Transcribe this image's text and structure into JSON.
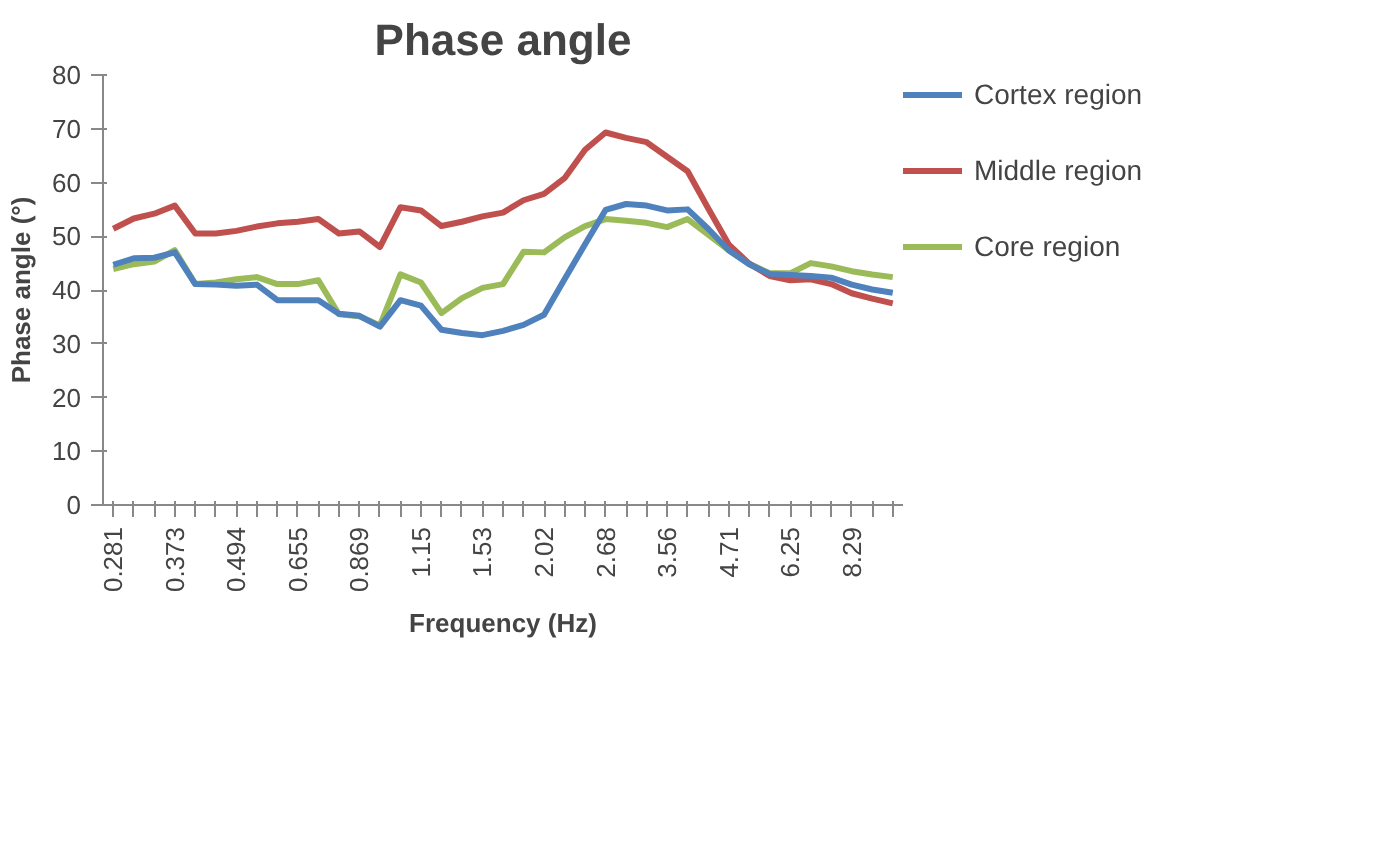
{
  "chart_data": {
    "type": "line",
    "title": "Phase angle",
    "xlabel": "Frequency (Hz)",
    "ylabel": "Phase angle (°)",
    "categories": [
      "0.281",
      null,
      null,
      "0.373",
      null,
      null,
      "0.494",
      null,
      null,
      "0.655",
      null,
      null,
      "0.869",
      null,
      null,
      "1.15",
      null,
      null,
      "1.53",
      null,
      null,
      "2.02",
      null,
      null,
      "2.68",
      null,
      null,
      "3.56",
      null,
      null,
      "4.71",
      null,
      null,
      "6.25",
      null,
      null,
      "8.29",
      null,
      null
    ],
    "series": [
      {
        "name": "Cortex region",
        "color": "#4f81bd",
        "values": [
          44.7,
          45.9,
          46,
          47,
          41.1,
          41,
          40.8,
          41,
          38.1,
          38.1,
          38.1,
          35.6,
          35.2,
          33.2,
          38.1,
          37.1,
          32.6,
          32,
          31.6,
          32.4,
          33.5,
          35.4,
          42,
          48.5,
          54.9,
          56,
          55.7,
          54.8,
          55,
          51.4,
          47.4,
          44.8,
          43,
          42.8,
          42.6,
          42.3,
          41,
          40.1,
          39.5
        ]
      },
      {
        "name": "Middle region",
        "color": "#c0504d",
        "values": [
          51.4,
          53.3,
          54.2,
          55.7,
          50.5,
          50.5,
          51,
          51.8,
          52.4,
          52.7,
          53.2,
          50.5,
          50.9,
          48,
          55.4,
          54.8,
          51.9,
          52.7,
          53.7,
          54.4,
          56.7,
          57.9,
          60.8,
          66.1,
          69.3,
          68.3,
          67.5,
          64.8,
          62.1,
          55.2,
          48.5,
          44.9,
          42.6,
          41.8,
          42,
          41.1,
          39.4,
          38.4,
          37.5
        ]
      },
      {
        "name": "Core region",
        "color": "#9bbb59",
        "values": [
          43.9,
          44.8,
          45.3,
          47.4,
          41.1,
          41.4,
          42,
          42.4,
          41.1,
          41.1,
          41.8,
          35.5,
          35.1,
          33.4,
          42.9,
          41.4,
          35.7,
          38.5,
          40.4,
          41.1,
          47.1,
          47,
          49.8,
          51.9,
          53.2,
          52.9,
          52.5,
          51.7,
          53.2,
          50.3,
          47.4,
          44.9,
          43.1,
          43.1,
          45,
          44.4,
          43.5,
          42.9,
          42.4
        ]
      }
    ],
    "ylim": [
      0,
      80
    ],
    "yticks": [
      0,
      10,
      20,
      30,
      40,
      50,
      60,
      70,
      80
    ],
    "grid": false,
    "legend": "right",
    "marker": "none",
    "line_style": "solid"
  }
}
